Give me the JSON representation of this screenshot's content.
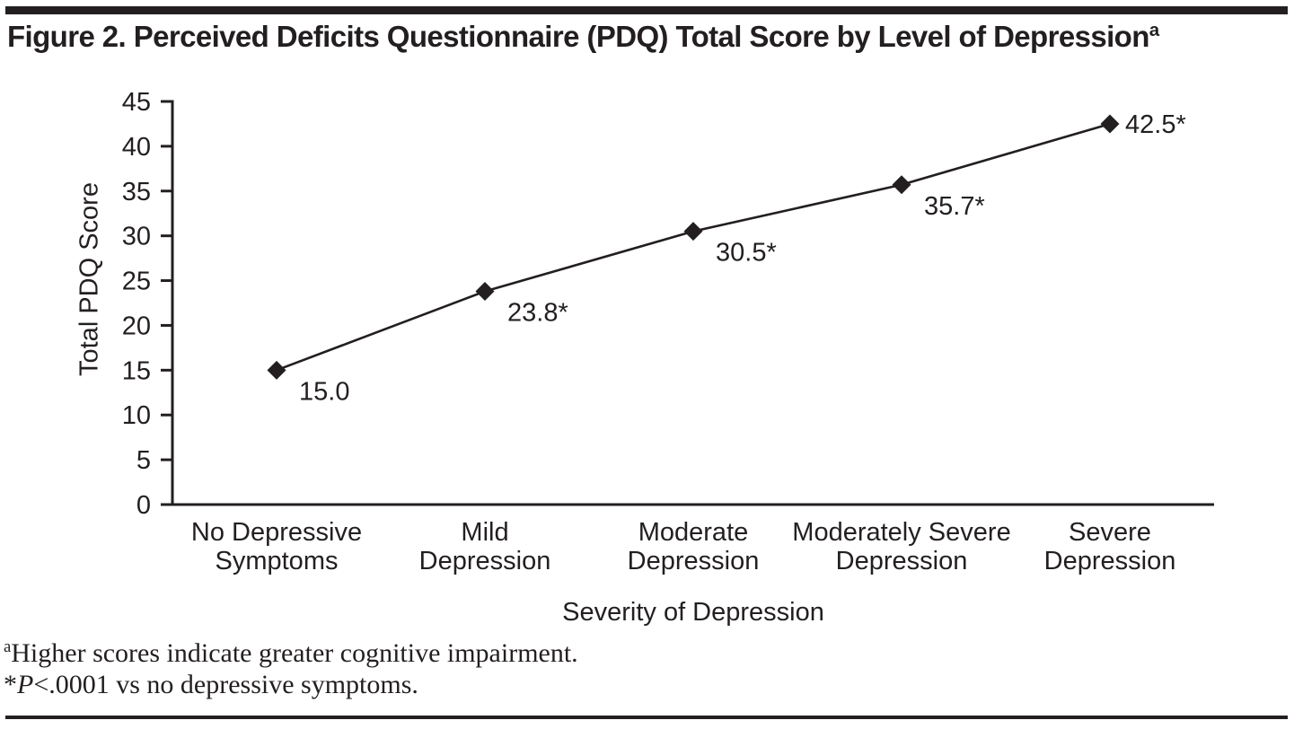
{
  "page": {
    "background": "#ffffff",
    "ink_color": "#231f20"
  },
  "header": {
    "title": "Figure 2. Perceived Deficits Questionnaire (PDQ) Total Score by Level of Depression",
    "title_superscript": "a"
  },
  "chart_data": {
    "type": "line",
    "categories": [
      [
        "No Depressive",
        "Symptoms"
      ],
      [
        "Mild",
        "Depression"
      ],
      [
        "Moderate",
        "Depression"
      ],
      [
        "Moderately Severe",
        "Depression"
      ],
      [
        "Severe",
        "Depression"
      ]
    ],
    "values": [
      15.0,
      23.8,
      30.5,
      35.7,
      42.5
    ],
    "point_labels": [
      "15.0",
      "23.8*",
      "30.5*",
      "35.7*",
      "42.5*"
    ],
    "label_placement": [
      "below-right",
      "below-right",
      "below-right",
      "below-right",
      "right"
    ],
    "xlabel": "Severity of Depression",
    "ylabel": "Total PDQ Score",
    "ylim": [
      0,
      45
    ],
    "yticks": [
      0,
      5,
      10,
      15,
      20,
      25,
      30,
      35,
      40,
      45
    ],
    "grid": false,
    "legend": "none",
    "marker": "diamond",
    "line_color": "#231f20",
    "marker_color": "#231f20"
  },
  "footnotes": [
    {
      "superscript": "a",
      "text": "Higher scores indicate greater cognitive impairment."
    },
    {
      "prefix": "*",
      "italic": "P",
      "text": "<.0001 vs no depressive symptoms."
    }
  ]
}
